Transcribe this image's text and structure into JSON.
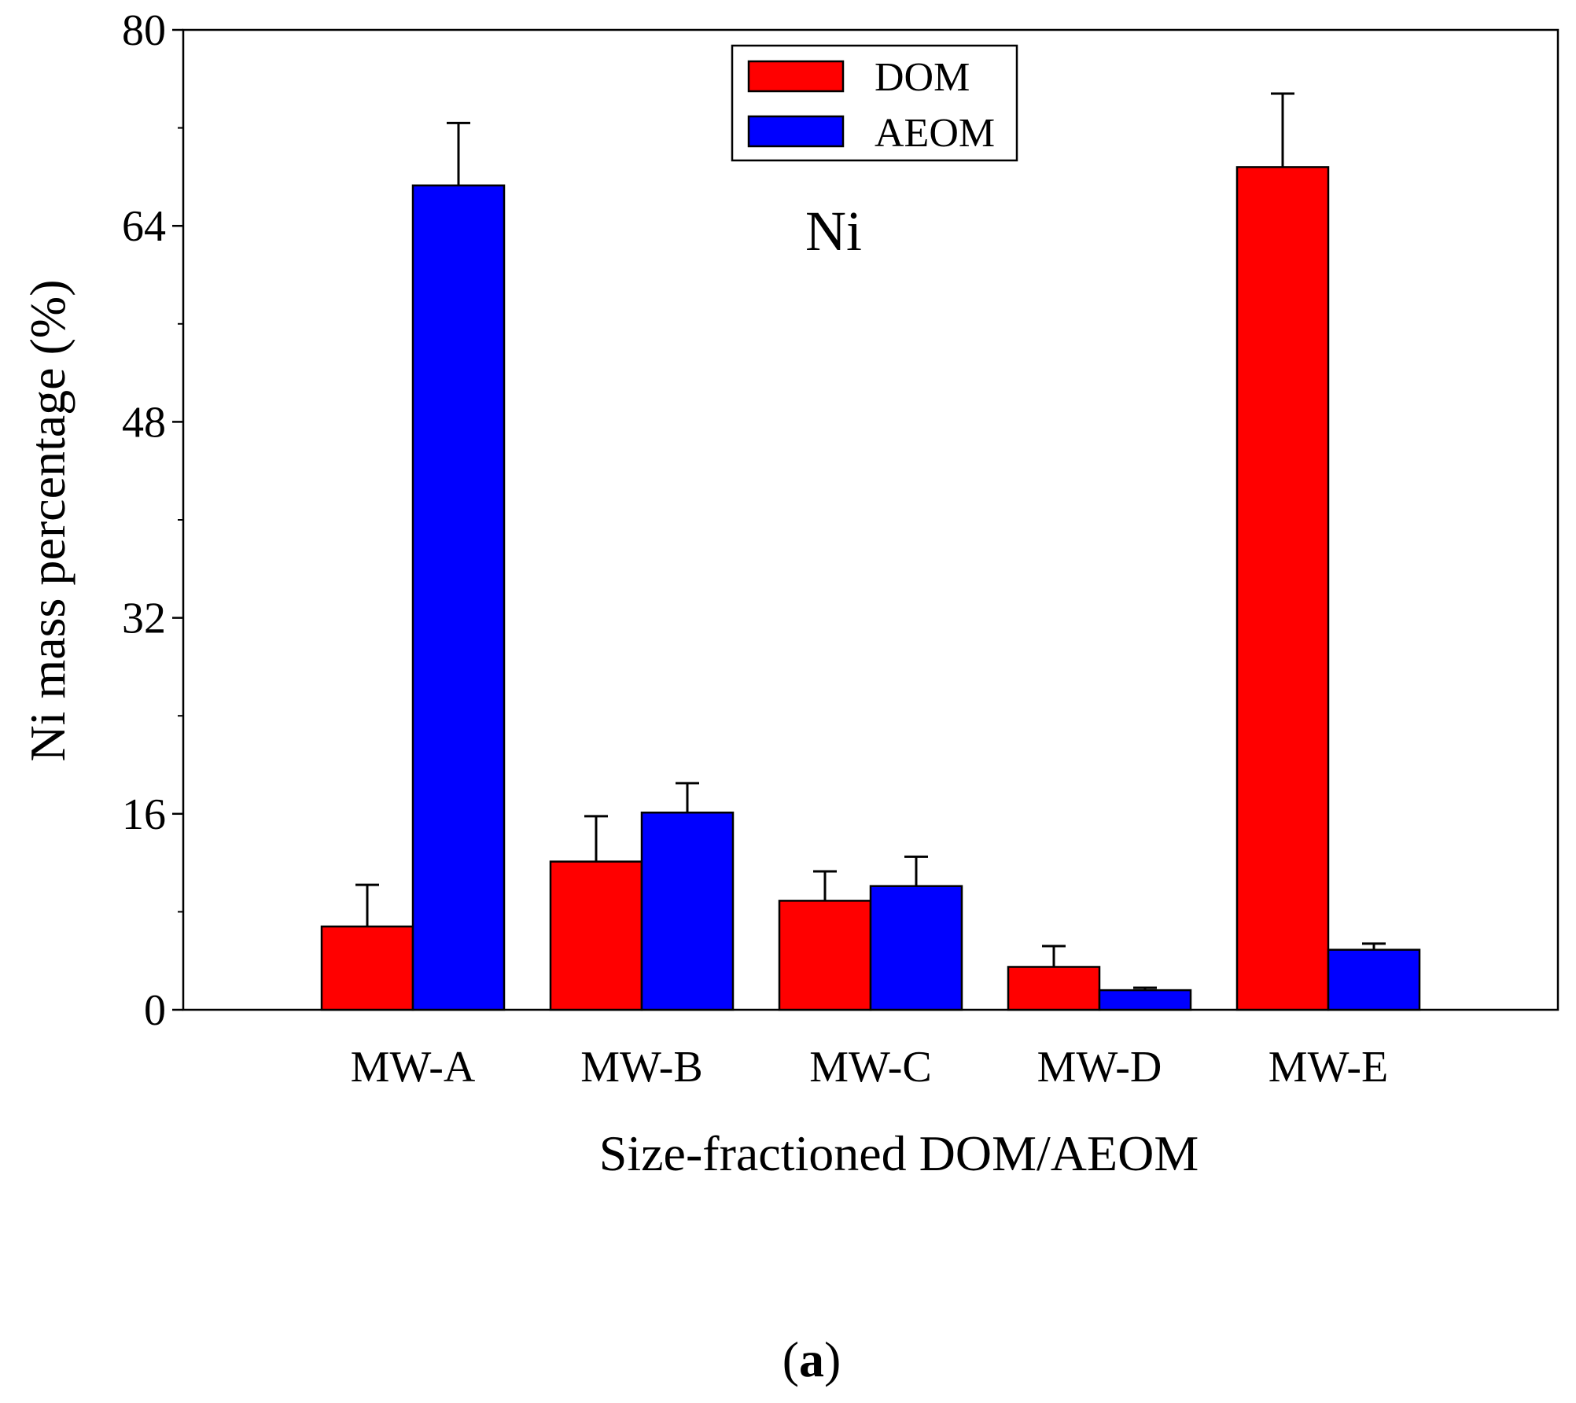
{
  "chart_data": {
    "type": "bar",
    "title": "",
    "annotation": "Ni",
    "xlabel": "Size-fractioned DOM/AEOM",
    "ylabel": "Ni mass percentage (%)",
    "ylim": [
      0,
      80
    ],
    "yticks": [
      0,
      16,
      32,
      48,
      64,
      80
    ],
    "grid": false,
    "legend_position": "top-center",
    "categories": [
      "MW-A",
      "MW-B",
      "MW-C",
      "MW-D",
      "MW-E"
    ],
    "series": [
      {
        "name": "DOM",
        "color": "#ff0000",
        "values": [
          6.8,
          12.1,
          8.9,
          3.5,
          68.8
        ],
        "errors": [
          3.4,
          3.7,
          2.4,
          1.7,
          6.0
        ]
      },
      {
        "name": "AEOM",
        "color": "#0000ff",
        "values": [
          67.3,
          16.1,
          10.1,
          1.6,
          4.9
        ],
        "errors": [
          5.1,
          2.4,
          2.4,
          0.2,
          0.5
        ]
      }
    ]
  },
  "caption": {
    "open": "(",
    "letter": "a",
    "close": ")"
  }
}
